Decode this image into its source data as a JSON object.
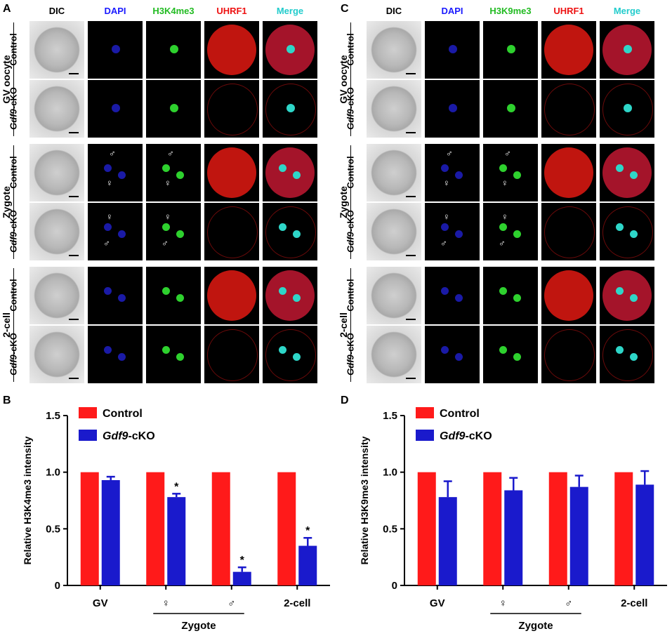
{
  "panels": {
    "A": "A",
    "B": "B",
    "C": "C",
    "D": "D"
  },
  "micrograph_A": {
    "columns": [
      "DIC",
      "DAPI",
      "H3K4me3",
      "UHRF1",
      "Merge"
    ],
    "column_colors": [
      "#000000",
      "#1a1aff",
      "#22bb22",
      "#ee1111",
      "#22cccc"
    ]
  },
  "micrograph_C": {
    "columns": [
      "DIC",
      "DAPI",
      "H3K9me3",
      "UHRF1",
      "Merge"
    ],
    "column_colors": [
      "#000000",
      "#1a1aff",
      "#22bb22",
      "#ee1111",
      "#22cccc"
    ]
  },
  "stages": [
    "GV oocyte",
    "Zygote",
    "2-cell"
  ],
  "conditions": [
    "Control",
    "Gdf9-cKO"
  ],
  "symbols": {
    "male": "♂",
    "female": "♀"
  },
  "chart_data": [
    {
      "type": "bar",
      "categories": [
        "GV",
        "♀",
        "♂",
        "2-cell"
      ],
      "group_label": "Zygote",
      "ylabel": "Relative H3K4me3 intensity",
      "ylim": [
        0,
        1.5
      ],
      "yticks": [
        "0",
        "0.5",
        "1.0",
        "1.5"
      ],
      "series": [
        {
          "name": "Control",
          "color": "#ff1a1a",
          "values": [
            1.0,
            1.0,
            1.0,
            1.0
          ],
          "errors": [
            0,
            0,
            0,
            0
          ]
        },
        {
          "name": "Gdf9-cKO",
          "color": "#1a1acc",
          "values": [
            0.93,
            0.78,
            0.12,
            0.35
          ],
          "errors": [
            0.03,
            0.03,
            0.04,
            0.07
          ]
        }
      ],
      "significance": [
        "",
        "*",
        "*",
        "*"
      ]
    },
    {
      "type": "bar",
      "categories": [
        "GV",
        "♀",
        "♂",
        "2-cell"
      ],
      "group_label": "Zygote",
      "ylabel": "Relative H3K9me3 intensity",
      "ylim": [
        0,
        1.5
      ],
      "yticks": [
        "0",
        "0.5",
        "1.0",
        "1.5"
      ],
      "series": [
        {
          "name": "Control",
          "color": "#ff1a1a",
          "values": [
            1.0,
            1.0,
            1.0,
            1.0
          ],
          "errors": [
            0,
            0,
            0,
            0
          ]
        },
        {
          "name": "Gdf9-cKO",
          "color": "#1a1acc",
          "values": [
            0.78,
            0.84,
            0.87,
            0.89
          ],
          "errors": [
            0.14,
            0.11,
            0.1,
            0.12
          ]
        }
      ],
      "significance": [
        "",
        "",
        "",
        ""
      ]
    }
  ]
}
